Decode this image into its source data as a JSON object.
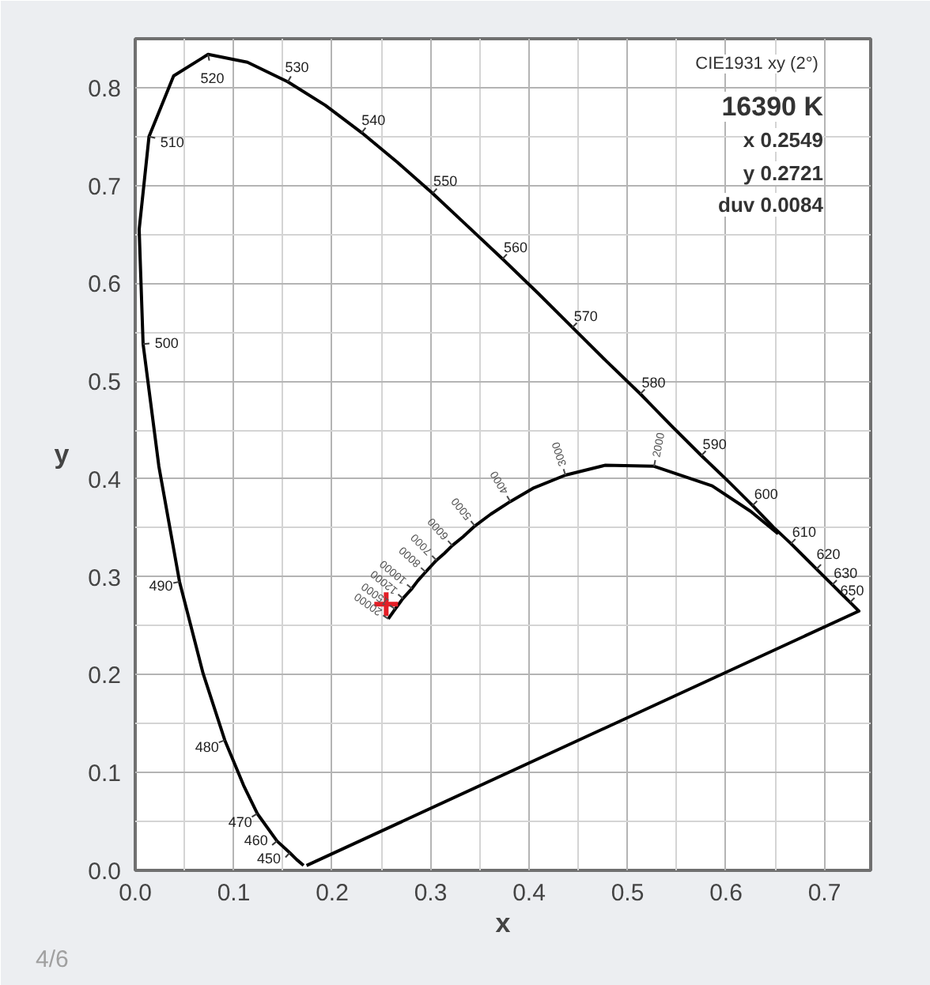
{
  "chart_data": {
    "type": "line",
    "xlabel": "x",
    "ylabel": "y",
    "xlim": [
      0,
      0.747
    ],
    "ylim": [
      0,
      0.85
    ],
    "xticks": [
      {
        "value": 0,
        "label": "0.0"
      },
      {
        "value": 0.05,
        "label": null
      },
      0.1,
      {
        "value": 0.15,
        "label": null
      },
      0.2,
      {
        "value": 0.25,
        "label": null
      },
      0.3,
      {
        "value": 0.35,
        "label": null
      },
      0.4,
      {
        "value": 0.45,
        "label": null
      },
      0.5,
      {
        "value": 0.55,
        "label": null
      },
      0.6,
      {
        "value": 0.65,
        "label": null
      },
      0.7
    ],
    "yticks": [
      {
        "value": 0,
        "label": "0.0"
      },
      {
        "value": 0.05,
        "label": null
      },
      0.1,
      {
        "value": 0.15,
        "label": null
      },
      0.2,
      {
        "value": 0.25,
        "label": null
      },
      0.3,
      {
        "value": 0.35,
        "label": null
      },
      0.4,
      {
        "value": 0.45,
        "label": null
      },
      0.5,
      {
        "value": 0.55,
        "label": null
      },
      0.6,
      {
        "value": 0.65,
        "label": null
      },
      0.7,
      {
        "value": 0.75,
        "label": null
      },
      0.8
    ],
    "grid": true,
    "series": [
      {
        "color": "#000000",
        "x": [
          0.171,
          0.164,
          0.157,
          0.144,
          0.124,
          0.11,
          0.091,
          0.069,
          0.045,
          0.024,
          0.008,
          0.004,
          0.014,
          0.039,
          0.074,
          0.114,
          0.155,
          0.193,
          0.23,
          0.266,
          0.302,
          0.337,
          0.373,
          0.409,
          0.444,
          0.479,
          0.513,
          0.545,
          0.575,
          0.603,
          0.627,
          0.648,
          0.666,
          0.692,
          0.708,
          0.719,
          0.726,
          0.735,
          0.174
        ],
        "values": [
          0.005,
          0.011,
          0.018,
          0.03,
          0.058,
          0.087,
          0.133,
          0.201,
          0.295,
          0.413,
          0.538,
          0.655,
          0.75,
          0.812,
          0.834,
          0.826,
          0.806,
          0.782,
          0.754,
          0.724,
          0.692,
          0.659,
          0.625,
          0.59,
          0.555,
          0.52,
          0.487,
          0.454,
          0.424,
          0.397,
          0.373,
          0.351,
          0.334,
          0.308,
          0.292,
          0.281,
          0.274,
          0.265,
          0.005
        ]
      },
      {
        "color": "#000000",
        "x": [
          0.653,
          0.625,
          0.586,
          0.527,
          0.477,
          0.437,
          0.405,
          0.381,
          0.361,
          0.345,
          0.333,
          0.322,
          0.314,
          0.306,
          0.295,
          0.287,
          0.281,
          0.272,
          0.264,
          0.257
        ],
        "values": [
          0.344,
          0.367,
          0.393,
          0.413,
          0.414,
          0.404,
          0.391,
          0.377,
          0.364,
          0.352,
          0.341,
          0.332,
          0.324,
          0.317,
          0.305,
          0.296,
          0.288,
          0.278,
          0.267,
          0.257
        ]
      },
      {
        "type": "scatter",
        "color": "#e41e26",
        "marker": "cross",
        "x": [
          0.2549
        ],
        "values": [
          0.2721
        ]
      }
    ],
    "annotations": [
      "CIE1931 xy (2°)",
      "16390 K",
      "x 0.2549",
      "y 0.2721",
      "duv 0.0084",
      {
        "text": "450",
        "x": 0.157,
        "y": 0.018
      },
      {
        "text": "460",
        "x": 0.144,
        "y": 0.03
      },
      {
        "text": "470",
        "x": 0.124,
        "y": 0.058
      },
      {
        "text": "480",
        "x": 0.091,
        "y": 0.133
      },
      {
        "text": "490",
        "x": 0.045,
        "y": 0.295
      },
      {
        "text": "500",
        "x": 0.008,
        "y": 0.538
      },
      {
        "text": "510",
        "x": 0.014,
        "y": 0.75
      },
      {
        "text": "520",
        "x": 0.074,
        "y": 0.834
      },
      {
        "text": "530",
        "x": 0.155,
        "y": 0.806
      },
      {
        "text": "540",
        "x": 0.23,
        "y": 0.754
      },
      {
        "text": "550",
        "x": 0.302,
        "y": 0.692
      },
      {
        "text": "560",
        "x": 0.373,
        "y": 0.625
      },
      {
        "text": "570",
        "x": 0.444,
        "y": 0.555
      },
      {
        "text": "580",
        "x": 0.513,
        "y": 0.487
      },
      {
        "text": "590",
        "x": 0.575,
        "y": 0.424
      },
      {
        "text": "600",
        "x": 0.627,
        "y": 0.373
      },
      {
        "text": "610",
        "x": 0.666,
        "y": 0.334
      },
      {
        "text": "620",
        "x": 0.692,
        "y": 0.308
      },
      {
        "text": "630",
        "x": 0.708,
        "y": 0.292
      },
      {
        "text": "650",
        "x": 0.726,
        "y": 0.274
      },
      {
        "text": "2000",
        "x": 0.527,
        "y": 0.413
      },
      {
        "text": "3000",
        "x": 0.437,
        "y": 0.404
      },
      {
        "text": "4000",
        "x": 0.381,
        "y": 0.377
      },
      {
        "text": "5000",
        "x": 0.345,
        "y": 0.352
      },
      {
        "text": "6000",
        "x": 0.322,
        "y": 0.332
      },
      {
        "text": "7000",
        "x": 0.306,
        "y": 0.317
      },
      {
        "text": "8000",
        "x": 0.295,
        "y": 0.305
      },
      {
        "text": "10000",
        "x": 0.281,
        "y": 0.288
      },
      {
        "text": "12000",
        "x": 0.272,
        "y": 0.278
      },
      {
        "text": "15000",
        "x": 0.264,
        "y": 0.267
      },
      {
        "text": "20000",
        "x": 0.257,
        "y": 0.257
      },
      "4/6"
    ]
  }
}
